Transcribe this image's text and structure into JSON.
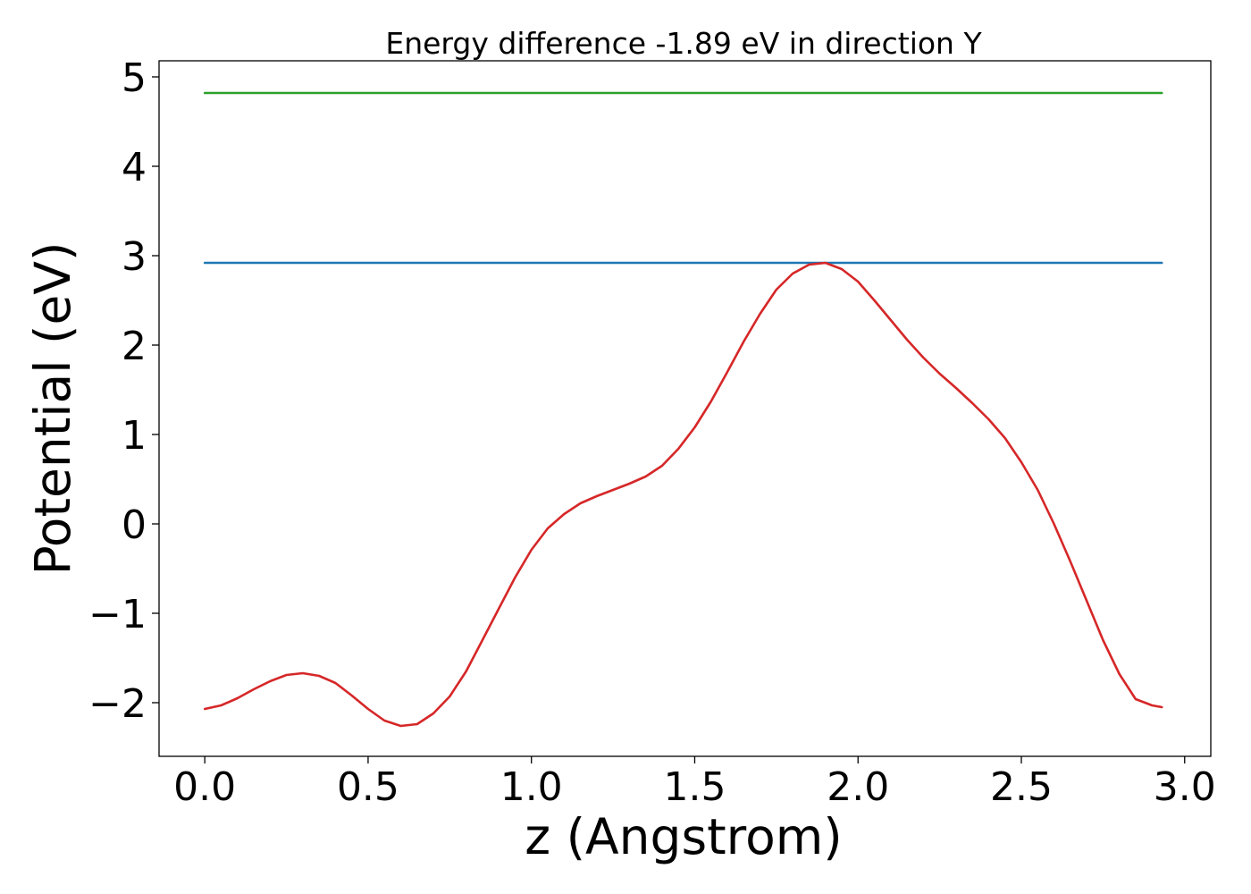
{
  "chart_data": {
    "type": "line",
    "title": "Energy difference -1.89 eV in direction Y",
    "xlabel": "z (Angstrom)",
    "ylabel": "Potential (eV)",
    "xlim": [
      -0.14,
      3.08
    ],
    "ylim": [
      -2.6,
      5.18
    ],
    "xticks": [
      0.0,
      0.5,
      1.0,
      1.5,
      2.0,
      2.5,
      3.0
    ],
    "xtick_labels": [
      "0.0",
      "0.5",
      "1.0",
      "1.5",
      "2.0",
      "2.5",
      "3.0"
    ],
    "yticks": [
      -2,
      -1,
      0,
      1,
      2,
      3,
      4,
      5
    ],
    "ytick_labels": [
      "−2",
      "−1",
      "0",
      "1",
      "2",
      "3",
      "4",
      "5"
    ],
    "grid": false,
    "series": [
      {
        "color": "#2ca02c",
        "x": [
          0.0,
          2.93
        ],
        "y": [
          4.82,
          4.82
        ]
      },
      {
        "color": "#1f77b4",
        "x": [
          0.0,
          2.93
        ],
        "y": [
          2.92,
          2.92
        ]
      },
      {
        "color": "#d62728",
        "x": [
          0.0,
          0.05,
          0.1,
          0.15,
          0.2,
          0.25,
          0.3,
          0.35,
          0.4,
          0.45,
          0.5,
          0.55,
          0.6,
          0.65,
          0.7,
          0.75,
          0.8,
          0.85,
          0.9,
          0.95,
          1.0,
          1.05,
          1.1,
          1.15,
          1.2,
          1.25,
          1.3,
          1.35,
          1.4,
          1.45,
          1.5,
          1.55,
          1.6,
          1.65,
          1.7,
          1.75,
          1.8,
          1.85,
          1.9,
          1.95,
          2.0,
          2.05,
          2.1,
          2.15,
          2.2,
          2.25,
          2.3,
          2.35,
          2.4,
          2.45,
          2.5,
          2.55,
          2.6,
          2.65,
          2.7,
          2.75,
          2.8,
          2.85,
          2.9,
          2.93
        ],
        "y": [
          -2.07,
          -2.03,
          -1.95,
          -1.85,
          -1.76,
          -1.69,
          -1.67,
          -1.7,
          -1.78,
          -1.92,
          -2.07,
          -2.2,
          -2.26,
          -2.24,
          -2.12,
          -1.93,
          -1.65,
          -1.3,
          -0.95,
          -0.6,
          -0.29,
          -0.05,
          0.11,
          0.23,
          0.31,
          0.38,
          0.45,
          0.53,
          0.65,
          0.84,
          1.08,
          1.37,
          1.7,
          2.04,
          2.35,
          2.62,
          2.8,
          2.9,
          2.92,
          2.85,
          2.71,
          2.5,
          2.28,
          2.06,
          1.86,
          1.68,
          1.52,
          1.35,
          1.17,
          0.96,
          0.69,
          0.38,
          0.0,
          -0.42,
          -0.86,
          -1.3,
          -1.68,
          -1.96,
          -2.03,
          -2.05
        ]
      }
    ]
  }
}
